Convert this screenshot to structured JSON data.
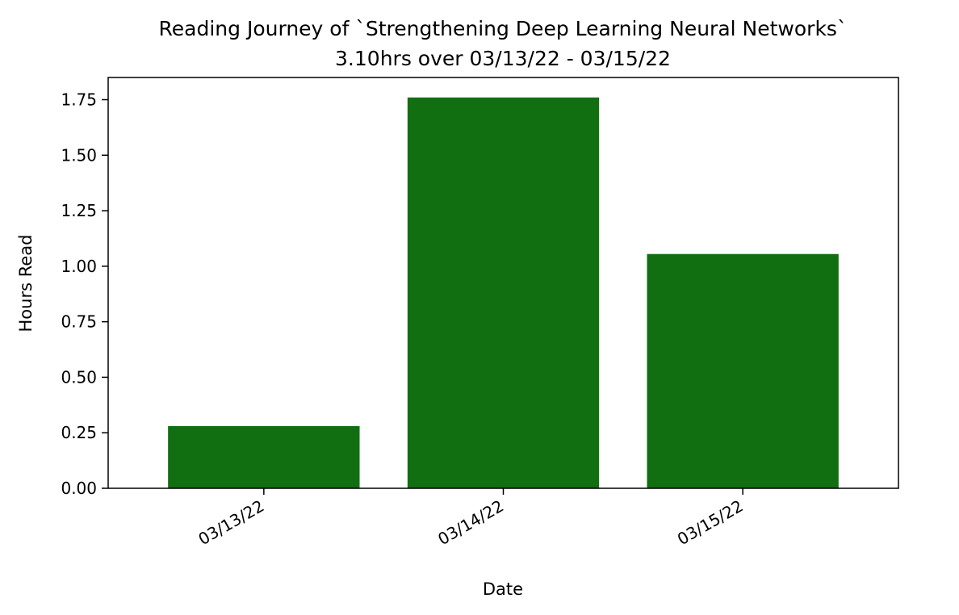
{
  "chart_data": {
    "type": "bar",
    "title": "Reading Journey of `Strengthening Deep Learning Neural Networks`",
    "subtitle": "3.10hrs over 03/13/22 - 03/15/22",
    "xlabel": "Date",
    "ylabel": "Hours Read",
    "categories": [
      "03/13/22",
      "03/14/22",
      "03/15/22"
    ],
    "values": [
      0.28,
      1.76,
      1.055
    ],
    "ylim": [
      0,
      1.85
    ],
    "yticks": [
      "0.00",
      "0.25",
      "0.50",
      "0.75",
      "1.00",
      "1.25",
      "1.50",
      "1.75"
    ],
    "grid": false,
    "legend": "none",
    "bar_color": "#116f11"
  }
}
